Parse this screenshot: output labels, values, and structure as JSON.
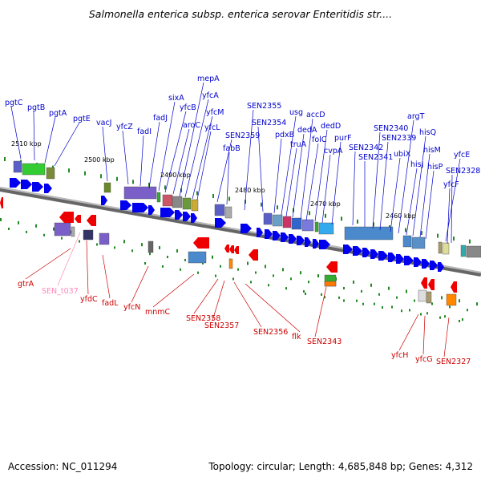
{
  "title": "Salmonella enterica subsp. enterica serovar Enteritidis str....",
  "footer": {
    "accession": "Accession: NC_011294",
    "stats": "Topology: circular; Length: 4,685,848 bp; Genes: 4,312"
  },
  "colors": {
    "forward_label": "#0000cc",
    "reverse_label": "#cc0000",
    "rna_label": "#ff88bb",
    "backbone": "#888888",
    "tick": "#228822"
  },
  "scale_labels": [
    "2510 kbp",
    "2500 kbp",
    "2490 kbp",
    "2480 kbp",
    "2470 kbp",
    "2460 kbp"
  ],
  "forward_genes": [
    "pgtC",
    "pgtB",
    "pgtA",
    "pgtE",
    "vacJ",
    "yfcZ",
    "fadI",
    "fadJ",
    "sixA",
    "yfcB",
    "aroC",
    "mepA",
    "yfcA",
    "yfcM",
    "yfcL",
    "SEN2359",
    "fabB",
    "SEN2355",
    "SEN2354",
    "pdxB",
    "usg",
    "truA",
    "dedA",
    "accD",
    "folC",
    "dedD",
    "cvpA",
    "purF",
    "SEN2342",
    "SEN2341",
    "SEN2340",
    "SEN2339",
    "ubiX",
    "argT",
    "hisJ",
    "hisQ",
    "hisM",
    "hisP",
    "yfcE",
    "SEN2328",
    "yfcF"
  ],
  "reverse_genes": [
    "gtrA",
    "yfdC",
    "fadL",
    "yfcN",
    "mnmC",
    "SEN2358",
    "SEN2357",
    "SEN2356",
    "flk",
    "SEN2343",
    "yfcH",
    "yfcG",
    "SEN2327"
  ],
  "rna_genes": [
    "SEN_t037"
  ]
}
